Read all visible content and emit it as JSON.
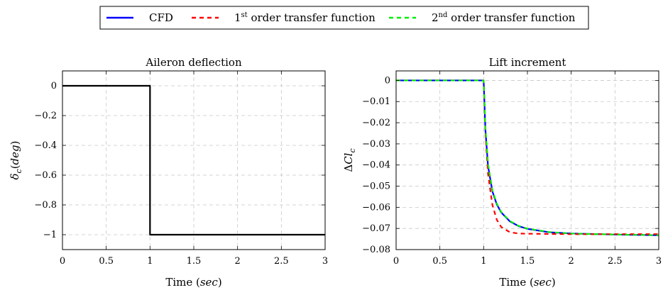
{
  "legend": {
    "items": [
      {
        "pre": "CFD",
        "sup": "",
        "post": "",
        "color": "#0000ff",
        "dash": ""
      },
      {
        "pre": "1",
        "sup": "st",
        "post": " order transfer function",
        "color": "#ff0000",
        "dash": "6,5"
      },
      {
        "pre": "2",
        "sup": "nd",
        "post": " order transfer function",
        "color": "#00ee00",
        "dash": "6,5"
      }
    ]
  },
  "chart_data": [
    {
      "type": "line",
      "title": "Aileron deflection",
      "xlabel": "Time (sec)",
      "ylabel": "δc(deg)",
      "xlim": [
        0,
        3
      ],
      "ylim": [
        -1.1,
        0.1
      ],
      "xticks": [
        0,
        0.5,
        1,
        1.5,
        2,
        2.5,
        3
      ],
      "xtick_labels": [
        "0",
        "0.5",
        "1",
        "1.5",
        "2",
        "2.5",
        "3"
      ],
      "yticks": [
        0,
        -0.2,
        -0.4,
        -0.6,
        -0.8,
        -1
      ],
      "ytick_labels": [
        "0",
        "−0.2",
        "−0.4",
        "−0.6",
        "−0.8",
        "−1"
      ],
      "grid": true,
      "series": [
        {
          "color": "#000000",
          "dash": "",
          "x": [
            0,
            1,
            1,
            3
          ],
          "y": [
            0,
            0,
            -1,
            -1
          ]
        }
      ]
    },
    {
      "type": "line",
      "title": "Lift increment",
      "xlabel": "Time (sec)",
      "ylabel": "ΔClc",
      "xlim": [
        0,
        3
      ],
      "ylim": [
        -0.08,
        0.0045
      ],
      "xticks": [
        0,
        0.5,
        1,
        1.5,
        2,
        2.5,
        3
      ],
      "xtick_labels": [
        "0",
        "0.5",
        "1",
        "1.5",
        "2",
        "2.5",
        "3"
      ],
      "yticks": [
        0,
        -0.01,
        -0.02,
        -0.03,
        -0.04,
        -0.05,
        -0.06,
        -0.07,
        -0.08
      ],
      "ytick_labels": [
        "0",
        "−0.01",
        "−0.02",
        "−0.03",
        "−0.04",
        "−0.05",
        "−0.06",
        "−0.07",
        "−0.08"
      ],
      "grid": true,
      "series": [
        {
          "name": "CFD",
          "color": "#0000ff",
          "dash": "",
          "x": [
            0,
            1.0,
            1.02,
            1.05,
            1.1,
            1.15,
            1.2,
            1.3,
            1.4,
            1.5,
            1.75,
            2.0,
            2.5,
            3.0
          ],
          "y": [
            0,
            0,
            -0.0232,
            -0.0405,
            -0.0525,
            -0.0586,
            -0.0624,
            -0.0667,
            -0.0689,
            -0.0702,
            -0.0718,
            -0.0724,
            -0.0729,
            -0.0732
          ]
        },
        {
          "name": "1st order transfer function",
          "color": "#ff0000",
          "dash": "6,5",
          "x": [
            0,
            1.0,
            1.02,
            1.05,
            1.1,
            1.15,
            1.2,
            1.3,
            1.4,
            1.5,
            1.75,
            2.0,
            2.5,
            3.0
          ],
          "y": [
            0,
            0,
            -0.0244,
            -0.0442,
            -0.0589,
            -0.0659,
            -0.0693,
            -0.0718,
            -0.0724,
            -0.0725,
            -0.0726,
            -0.0727,
            -0.0727,
            -0.0727
          ]
        },
        {
          "name": "2nd order transfer function",
          "color": "#00ee00",
          "dash": "6,5",
          "x": [
            0,
            1.0,
            1.02,
            1.05,
            1.1,
            1.15,
            1.2,
            1.3,
            1.4,
            1.5,
            1.75,
            2.0,
            2.5,
            3.0
          ],
          "y": [
            0,
            0,
            -0.022,
            -0.0395,
            -0.052,
            -0.0582,
            -0.0622,
            -0.0665,
            -0.0688,
            -0.0701,
            -0.0717,
            -0.0724,
            -0.0729,
            -0.0732
          ]
        }
      ]
    }
  ]
}
